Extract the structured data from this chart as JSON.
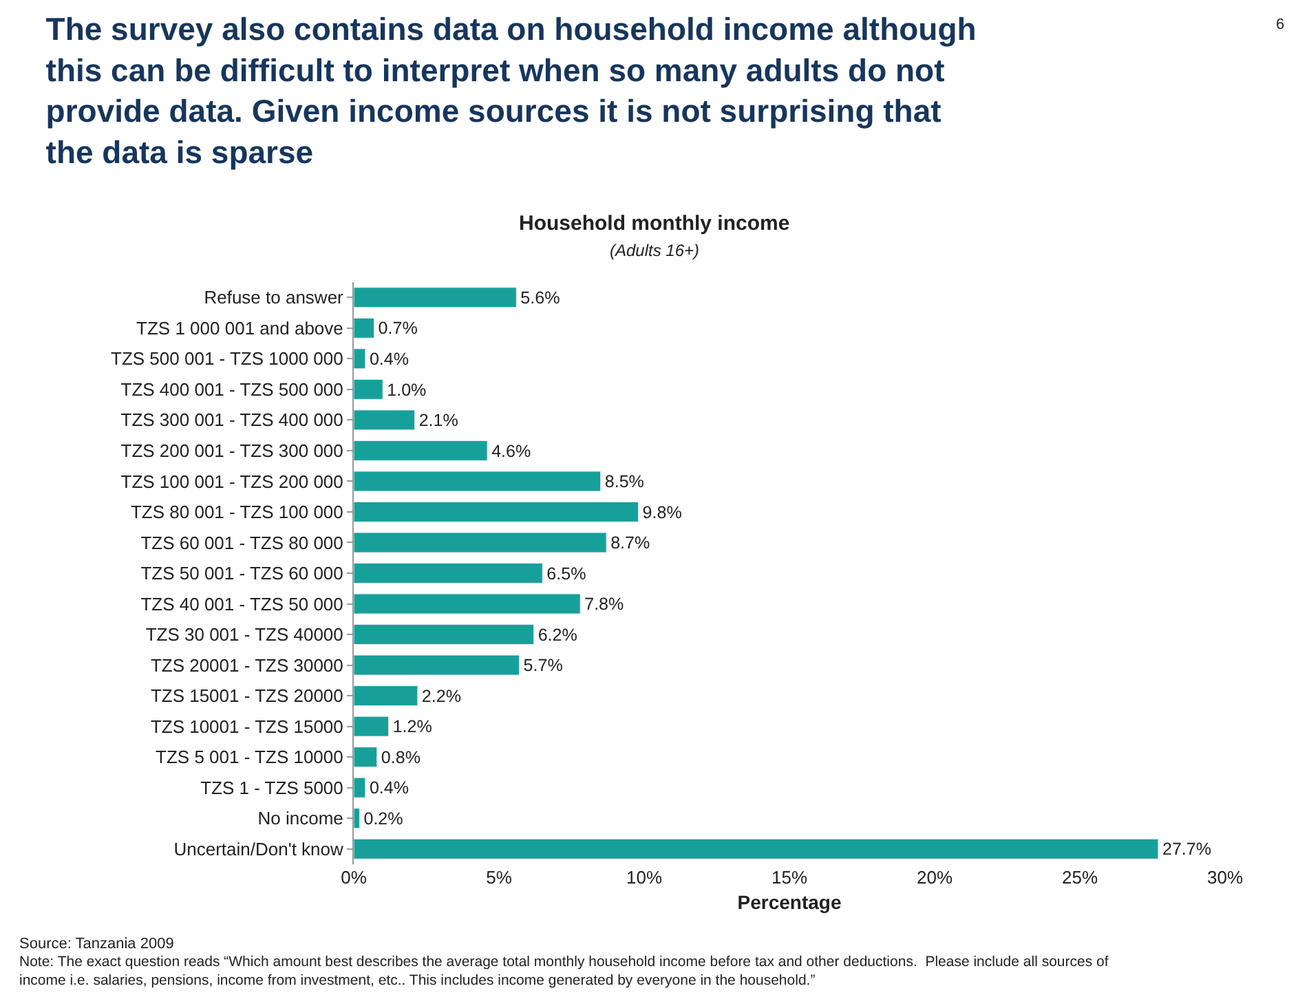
{
  "chart_data": {
    "type": "bar",
    "orientation": "horizontal",
    "title": "The survey also contains data on household income although this can be difficult to interpret when so many adults do not provide data. Given income sources it is not surprising that the data is sparse",
    "subtitle": "Household monthly income",
    "xlabel": "Percentage",
    "categories": [
      "Refuse to answer",
      "TZS 1 000 001 and above",
      "TZS 500 001 - TZS 1000 000",
      "TZS 400 001 - TZS 500 000",
      "TZS 300 001 - TZS 400 000",
      "TZS 200 001 - TZS 300 000",
      "TZS 100 001 - TZS 200 000",
      "TZS 80 001 - TZS 100 000",
      "TZS 60 001 - TZS 80 000",
      "TZS 50 001 - TZS 60 000",
      "TZS 40 001 - TZS 50 000",
      "TZS 30 001 - TZS 40000",
      "TZS 20001 - TZS 30000",
      "TZS 15001 - TZS 20000",
      "TZS 10001 - TZS 15000",
      "TZS 5 001 - TZS 10000",
      "TZS 1 - TZS 5000",
      "No income",
      "Uncertain/Don't know"
    ],
    "values": [
      5.6,
      0.7,
      0.4,
      1.0,
      2.1,
      4.6,
      8.5,
      9.8,
      8.7,
      6.5,
      7.8,
      6.2,
      5.7,
      2.2,
      1.2,
      0.8,
      0.4,
      0.2,
      27.7
    ],
    "value_labels": [
      "5.6%",
      "0.7%",
      "0.4%",
      "1.0%",
      "2.1%",
      "4.6%",
      "8.5%",
      "9.8%",
      "8.7%",
      "6.5%",
      "7.8%",
      "6.2%",
      "5.7%",
      "2.2%",
      "1.2%",
      "0.8%",
      "0.4%",
      "0.2%",
      "27.7%"
    ],
    "color": "#17a09a",
    "xlim": [
      0,
      30
    ],
    "xticks": [
      {
        "value": 0,
        "label": "0%"
      },
      {
        "value": 5,
        "label": "5%"
      },
      {
        "value": 10,
        "label": "10%"
      },
      {
        "value": 15,
        "label": "15%"
      },
      {
        "value": 20,
        "label": "20%"
      },
      {
        "value": 25,
        "label": "25%"
      },
      {
        "value": 30,
        "label": "30%"
      }
    ],
    "annotations": [
      "(Adults 16+)",
      "6",
      "Source: Tanzania 2009",
      "Note: The exact question reads “Which amount best describes the average total monthly household income before tax and other deductions.  Please include all sources of income i.e. salaries, pensions, income from investment, etc.. This includes income generated by everyone in the household.”"
    ]
  }
}
